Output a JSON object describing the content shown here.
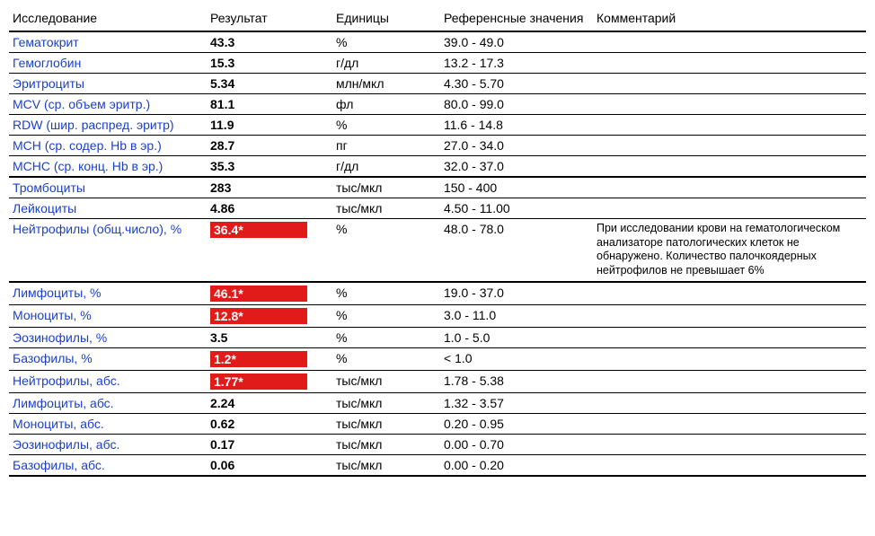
{
  "headers": {
    "test": "Исследование",
    "result": "Результат",
    "units": "Единицы",
    "reference": "Референсные значения",
    "comment": "Комментарий"
  },
  "colors": {
    "link": "#1a3fcf",
    "flag_bg": "#e11a1a",
    "flag_fg": "#ffffff",
    "border": "#000000",
    "background": "#ffffff"
  },
  "rows": [
    {
      "test": "Гематокрит",
      "result": "43.3",
      "units": "%",
      "reference": "39.0 - 49.0",
      "comment": "",
      "flagged": false,
      "thick": false
    },
    {
      "test": "Гемоглобин",
      "result": "15.3",
      "units": "г/дл",
      "reference": "13.2 - 17.3",
      "comment": "",
      "flagged": false,
      "thick": false
    },
    {
      "test": "Эритроциты",
      "result": "5.34",
      "units": "млн/мкл",
      "reference": "4.30 - 5.70",
      "comment": "",
      "flagged": false,
      "thick": false
    },
    {
      "test": "MCV (ср. объем эритр.)",
      "result": "81.1",
      "units": "фл",
      "reference": "80.0 - 99.0",
      "comment": "",
      "flagged": false,
      "thick": false
    },
    {
      "test": "RDW (шир. распред. эритр)",
      "result": "11.9",
      "units": "%",
      "reference": "11.6 - 14.8",
      "comment": "",
      "flagged": false,
      "thick": false
    },
    {
      "test": "MCH (ср. содер. Hb в эр.)",
      "result": "28.7",
      "units": "пг",
      "reference": "27.0 - 34.0",
      "comment": "",
      "flagged": false,
      "thick": false
    },
    {
      "test": "MCHC (ср. конц. Hb в эр.)",
      "result": "35.3",
      "units": "г/дл",
      "reference": "32.0 - 37.0",
      "comment": "",
      "flagged": false,
      "thick": true
    },
    {
      "test": "Тромбоциты",
      "result": "283",
      "units": "тыс/мкл",
      "reference": "150 - 400",
      "comment": "",
      "flagged": false,
      "thick": false
    },
    {
      "test": "Лейкоциты",
      "result": "4.86",
      "units": "тыс/мкл",
      "reference": "4.50 - 11.00",
      "comment": "",
      "flagged": false,
      "thick": false
    },
    {
      "test": "Нейтрофилы (общ.число), %",
      "result": "36.4*",
      "units": "%",
      "reference": "48.0 - 78.0",
      "comment": "При исследовании крови на гематологическом анализаторе патологических клеток не обнаружено. Количество палочкоядерных нейтрофилов не превышает 6%",
      "flagged": true,
      "thick": true
    },
    {
      "test": "Лимфоциты, %",
      "result": "46.1*",
      "units": "%",
      "reference": "19.0 - 37.0",
      "comment": "",
      "flagged": true,
      "thick": false
    },
    {
      "test": "Моноциты, %",
      "result": "12.8*",
      "units": "%",
      "reference": "3.0 - 11.0",
      "comment": "",
      "flagged": true,
      "thick": false
    },
    {
      "test": "Эозинофилы, %",
      "result": "3.5",
      "units": "%",
      "reference": "1.0 - 5.0",
      "comment": "",
      "flagged": false,
      "thick": false
    },
    {
      "test": "Базофилы, %",
      "result": "1.2*",
      "units": "%",
      "reference": "< 1.0",
      "comment": "",
      "flagged": true,
      "thick": false
    },
    {
      "test": "Нейтрофилы, абс.",
      "result": "1.77*",
      "units": "тыс/мкл",
      "reference": "1.78 - 5.38",
      "comment": "",
      "flagged": true,
      "thick": false
    },
    {
      "test": "Лимфоциты, абс.",
      "result": "2.24",
      "units": "тыс/мкл",
      "reference": "1.32 - 3.57",
      "comment": "",
      "flagged": false,
      "thick": false
    },
    {
      "test": "Моноциты, абс.",
      "result": "0.62",
      "units": "тыс/мкл",
      "reference": "0.20 - 0.95",
      "comment": "",
      "flagged": false,
      "thick": false
    },
    {
      "test": "Эозинофилы, абс.",
      "result": "0.17",
      "units": "тыс/мкл",
      "reference": "0.00 - 0.70",
      "comment": "",
      "flagged": false,
      "thick": false
    },
    {
      "test": "Базофилы, абс.",
      "result": "0.06",
      "units": "тыс/мкл",
      "reference": "0.00 - 0.20",
      "comment": "",
      "flagged": false,
      "thick": true
    }
  ]
}
